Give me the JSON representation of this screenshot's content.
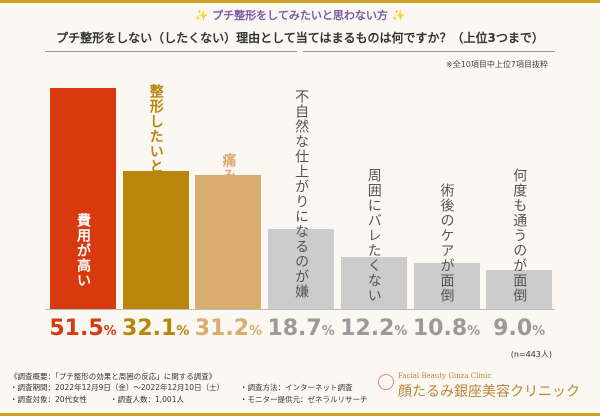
{
  "header": {
    "subtitle": "✨ プチ整形をしてみたいと思わない方 ✨",
    "question": "プチ整形をしない（したくない）理由として当てはまるものは何ですか？（上位3つまで）",
    "note": "※全10項目中上位7項目抜粋"
  },
  "chart_data": {
    "type": "bar",
    "title": "プチ整形をしない（したくない）理由として当てはまるものは何ですか？（上位3つまで）",
    "unit": "%",
    "ylim": [
      0,
      55
    ],
    "categories": [
      "費用が高い",
      "整形したいと思う部位が無い",
      "痛みや後遺症が不安",
      "不自然な仕上がりになるのが嫌",
      "周囲にバレたくない",
      "術後のケアが面倒",
      "何度も通うのが面倒"
    ],
    "values": [
      51.5,
      32.1,
      31.2,
      18.7,
      12.2,
      10.8,
      9.0
    ],
    "value_labels": [
      "51.5",
      "32.1",
      "31.2",
      "18.7",
      "12.2",
      "10.8",
      "9.0"
    ],
    "colors": [
      "#d9390f",
      "#b8860b",
      "#d9ac70",
      "#cccccc",
      "#cccccc",
      "#cccccc",
      "#cccccc"
    ],
    "label_colors": [
      "#d9390f",
      "#b8860b",
      "#d9ac70",
      "#9a9a9a",
      "#9a9a9a",
      "#9a9a9a",
      "#9a9a9a"
    ],
    "text_colors": [
      "#ffffff",
      "#ffffff",
      "#ffffff",
      "#555555",
      "#555555",
      "#555555",
      "#555555"
    ],
    "text_inside": [
      true,
      false,
      false,
      false,
      false,
      false,
      false
    ]
  },
  "n_label": "(n=443人)",
  "survey": {
    "l1": "《調査概要：「プチ整形の効果と周囲の反応」に関する調査》",
    "l2a": "・調査期間：2022年12月9日（金）～2022年12月10日（土）",
    "l2b": "・調査方法：インターネット調査",
    "l3a": "・調査対象：20代女性",
    "l3b": "・調査人数：1,001人",
    "l3c": "・モニター提供元：ゼネラルリサーチ"
  },
  "logo": {
    "en": "Facial Beauty Ginza Clinic",
    "jp": "顔たるみ銀座美容クリニック",
    "mark": "rgc"
  },
  "pct": "%"
}
